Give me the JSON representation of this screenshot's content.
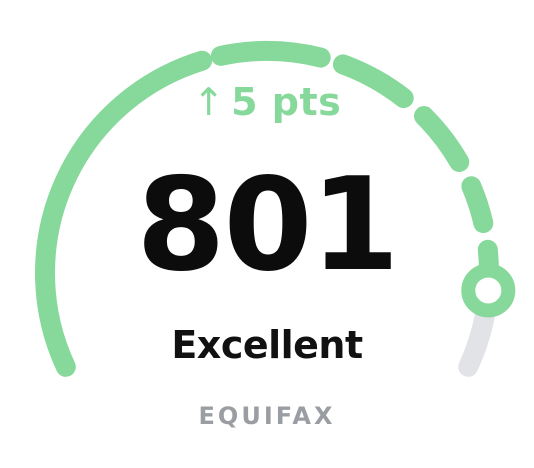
{
  "score_widget": {
    "score_change": {
      "arrow": "↑",
      "text": "5 pts"
    },
    "score": "801",
    "rating": "Excellent",
    "bureau": "EQUIFAX",
    "score_range": [
      300,
      850
    ],
    "colors": {
      "accent": "#86d99a",
      "track": "#e1e3e6",
      "score_text": "#0c0c0c",
      "bureau_text": "#9a9ea3"
    }
  }
}
